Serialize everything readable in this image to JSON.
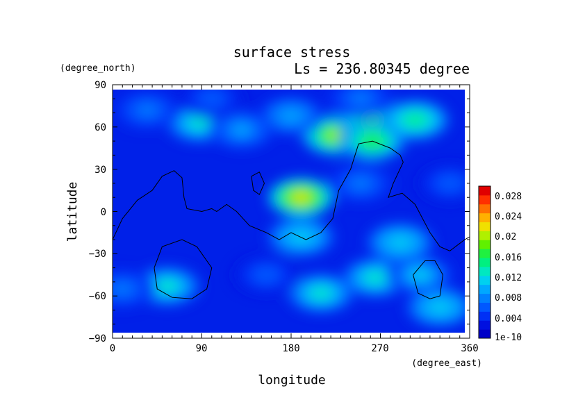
{
  "chart_data": {
    "type": "heatmap",
    "title": "surface stress",
    "subtitle": "Ls = 236.80345 degree",
    "xlabel": "longitude",
    "ylabel": "latitude",
    "xunit": "(degree_east)",
    "yunit": "(degree_north)",
    "xlim": [
      0,
      360
    ],
    "ylim": [
      -90,
      90
    ],
    "xticks": [
      "0",
      "90",
      "180",
      "270",
      "360"
    ],
    "yticks": [
      "90",
      "60",
      "30",
      "0",
      "−30",
      "−60",
      "−90"
    ],
    "colorbar": {
      "labels": [
        "0.028",
        "0.024",
        "0.02",
        "0.016",
        "0.012",
        "0.008",
        "0.004",
        "1e-10"
      ],
      "colors": [
        "#0000c8",
        "#0010e0",
        "#0030f5",
        "#0058ff",
        "#0080ff",
        "#00a8ff",
        "#00d0f0",
        "#00e8c0",
        "#00f080",
        "#20f040",
        "#60f000",
        "#b0f000",
        "#f0e000",
        "#ffb000",
        "#ff7000",
        "#ff3000",
        "#e00000"
      ],
      "range": [
        0,
        0.03
      ]
    },
    "hotspots": [
      {
        "lon": 190,
        "lat": 10,
        "value": 0.022
      },
      {
        "lon": 225,
        "lat": 54,
        "value": 0.02
      },
      {
        "lon": 262,
        "lat": 62,
        "value": 0.018
      },
      {
        "lon": 262,
        "lat": 50,
        "value": 0.017
      },
      {
        "lon": 305,
        "lat": 65,
        "value": 0.015
      },
      {
        "lon": 88,
        "lat": 63,
        "value": 0.014
      },
      {
        "lon": 55,
        "lat": -53,
        "value": 0.014
      },
      {
        "lon": 210,
        "lat": -58,
        "value": 0.014
      },
      {
        "lon": 265,
        "lat": -47,
        "value": 0.013
      },
      {
        "lon": 310,
        "lat": -45,
        "value": 0.011
      },
      {
        "lon": 290,
        "lat": -22,
        "value": 0.012
      },
      {
        "lon": 330,
        "lat": -68,
        "value": 0.012
      },
      {
        "lon": 190,
        "lat": -18,
        "value": 0.012
      },
      {
        "lon": 180,
        "lat": 68,
        "value": 0.01
      },
      {
        "lon": 130,
        "lat": 58,
        "value": 0.009
      },
      {
        "lon": 35,
        "lat": 72,
        "value": 0.008
      },
      {
        "lon": 250,
        "lat": 20,
        "value": 0.008
      },
      {
        "lon": 155,
        "lat": -45,
        "value": 0.007
      },
      {
        "lon": 10,
        "lat": -55,
        "value": 0.008
      },
      {
        "lon": 340,
        "lat": 20,
        "value": 0.007
      },
      {
        "lon": 100,
        "lat": 80,
        "value": 0.007
      },
      {
        "lon": 250,
        "lat": 80,
        "value": 0.008
      }
    ],
    "contours": [
      [
        [
          0,
          -20
        ],
        [
          10,
          -5
        ],
        [
          25,
          8
        ],
        [
          40,
          15
        ],
        [
          50,
          25
        ],
        [
          62,
          29
        ],
        [
          70,
          24
        ],
        [
          72,
          10
        ],
        [
          75,
          2
        ],
        [
          90,
          0
        ],
        [
          100,
          2
        ],
        [
          105,
          0
        ],
        [
          115,
          5
        ],
        [
          125,
          0
        ],
        [
          138,
          -10
        ],
        [
          155,
          -15
        ],
        [
          168,
          -20
        ],
        [
          180,
          -15
        ],
        [
          195,
          -20
        ],
        [
          210,
          -15
        ],
        [
          222,
          -5
        ],
        [
          228,
          15
        ],
        [
          240,
          30
        ],
        [
          248,
          48
        ],
        [
          262,
          50
        ],
        [
          280,
          45
        ],
        [
          290,
          40
        ],
        [
          293,
          35
        ],
        [
          283,
          20
        ],
        [
          278,
          10
        ],
        [
          292,
          13
        ],
        [
          305,
          5
        ],
        [
          320,
          -15
        ],
        [
          330,
          -25
        ],
        [
          340,
          -28
        ],
        [
          355,
          -20
        ],
        [
          360,
          -18
        ]
      ],
      [
        [
          140,
          25
        ],
        [
          148,
          28
        ],
        [
          153,
          20
        ],
        [
          148,
          12
        ],
        [
          142,
          15
        ],
        [
          140,
          25
        ]
      ],
      [
        [
          42,
          -40
        ],
        [
          50,
          -25
        ],
        [
          70,
          -20
        ],
        [
          85,
          -25
        ],
        [
          100,
          -40
        ],
        [
          95,
          -55
        ],
        [
          80,
          -62
        ],
        [
          60,
          -61
        ],
        [
          45,
          -55
        ],
        [
          42,
          -40
        ]
      ],
      [
        [
          303,
          -45
        ],
        [
          315,
          -35
        ],
        [
          325,
          -35
        ],
        [
          333,
          -45
        ],
        [
          330,
          -60
        ],
        [
          320,
          -62
        ],
        [
          308,
          -58
        ],
        [
          303,
          -45
        ]
      ]
    ]
  }
}
